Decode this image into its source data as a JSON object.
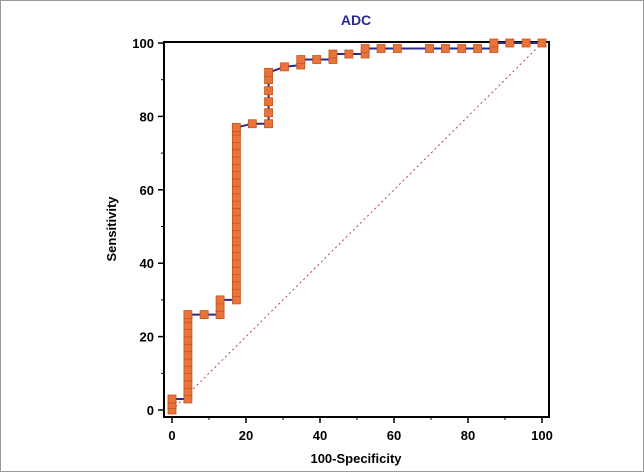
{
  "chart_data": {
    "type": "line",
    "title": "ADC",
    "xlabel": "100-Specificity",
    "ylabel": "Sensitivity",
    "xlim": [
      0,
      100
    ],
    "ylim": [
      0,
      100
    ],
    "xticks": [
      "0",
      "20",
      "40",
      "60",
      "80",
      "100"
    ],
    "yticks": [
      "0",
      "20",
      "40",
      "60",
      "80",
      "100"
    ],
    "grid": false,
    "colors": {
      "curve": "#2b2b8f",
      "marker": "#e8743b",
      "marker_edge": "#c4531d",
      "reference": "#b04a4a"
    },
    "reference_line": {
      "x": [
        0,
        100
      ],
      "y": [
        0,
        100
      ],
      "style": "dotted"
    },
    "series": [
      {
        "values_xy": [
          [
            0,
            0
          ],
          [
            0,
            1.5
          ],
          [
            0,
            3
          ],
          [
            4.3,
            3
          ],
          [
            4.3,
            5
          ],
          [
            4.3,
            7
          ],
          [
            4.3,
            9
          ],
          [
            4.3,
            11
          ],
          [
            4.3,
            13
          ],
          [
            4.3,
            15
          ],
          [
            4.3,
            17
          ],
          [
            4.3,
            19
          ],
          [
            4.3,
            21
          ],
          [
            4.3,
            23
          ],
          [
            4.3,
            25
          ],
          [
            4.3,
            26
          ],
          [
            8.7,
            26
          ],
          [
            13,
            26
          ],
          [
            13,
            28
          ],
          [
            13,
            30
          ],
          [
            17.4,
            30
          ],
          [
            17.4,
            32
          ],
          [
            17.4,
            34
          ],
          [
            17.4,
            36
          ],
          [
            17.4,
            38
          ],
          [
            17.4,
            40
          ],
          [
            17.4,
            42
          ],
          [
            17.4,
            44
          ],
          [
            17.4,
            46
          ],
          [
            17.4,
            48
          ],
          [
            17.4,
            50
          ],
          [
            17.4,
            52
          ],
          [
            17.4,
            54
          ],
          [
            17.4,
            56
          ],
          [
            17.4,
            58
          ],
          [
            17.4,
            60
          ],
          [
            17.4,
            62
          ],
          [
            17.4,
            64
          ],
          [
            17.4,
            66
          ],
          [
            17.4,
            68
          ],
          [
            17.4,
            70
          ],
          [
            17.4,
            72
          ],
          [
            17.4,
            74
          ],
          [
            17.4,
            76
          ],
          [
            17.4,
            77
          ],
          [
            21.7,
            78
          ],
          [
            26.1,
            78
          ],
          [
            26.1,
            81
          ],
          [
            26.1,
            84
          ],
          [
            26.1,
            87
          ],
          [
            26.1,
            90
          ],
          [
            26.1,
            92
          ],
          [
            30.4,
            93.5
          ],
          [
            34.8,
            94
          ],
          [
            34.8,
            95.5
          ],
          [
            39.1,
            95.5
          ],
          [
            43.5,
            95.5
          ],
          [
            43.5,
            97
          ],
          [
            47.8,
            97
          ],
          [
            52.2,
            97
          ],
          [
            52.2,
            98.5
          ],
          [
            56.5,
            98.5
          ],
          [
            60.9,
            98.5
          ],
          [
            69.6,
            98.5
          ],
          [
            73.9,
            98.5
          ],
          [
            78.3,
            98.5
          ],
          [
            82.6,
            98.5
          ],
          [
            87,
            98.5
          ],
          [
            87,
            100
          ],
          [
            91.3,
            100
          ],
          [
            95.7,
            100
          ],
          [
            100,
            100
          ]
        ]
      }
    ]
  }
}
